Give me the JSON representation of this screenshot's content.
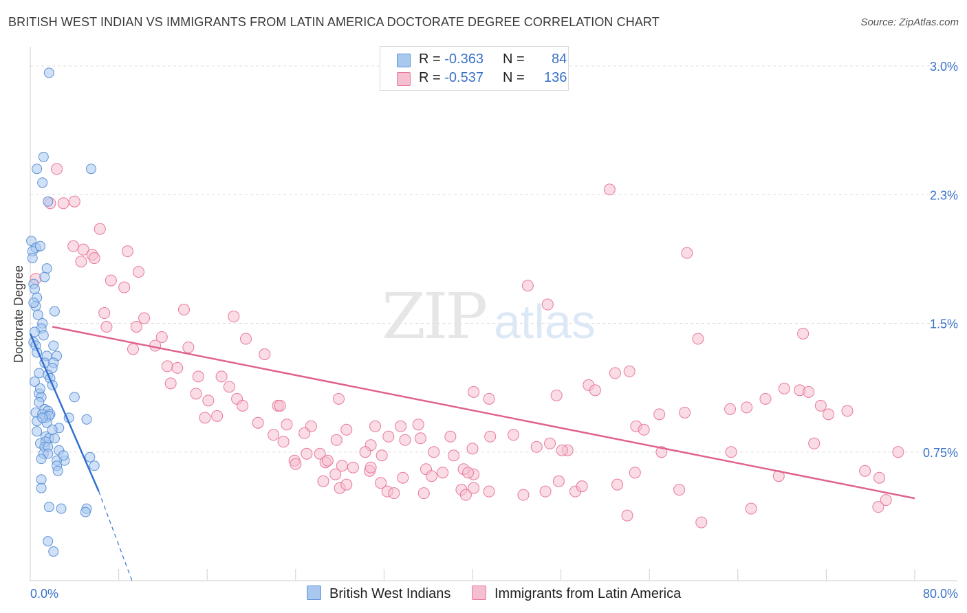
{
  "header": {
    "title": "BRITISH WEST INDIAN VS IMMIGRANTS FROM LATIN AMERICA DOCTORATE DEGREE CORRELATION CHART",
    "source": "Source: ZipAtlas.com"
  },
  "watermark": {
    "zip": "ZIP",
    "atlas": "atlas"
  },
  "legend": {
    "r_label": "R =",
    "n_label": "N =",
    "rows": [
      {
        "r": "-0.363",
        "n": "84"
      },
      {
        "r": "-0.537",
        "n": "136"
      }
    ]
  },
  "colors": {
    "blue_fill": "#a9c8f0",
    "blue_stroke": "#5b92d6",
    "blue_line": "#2f6fd1",
    "pink_fill": "#f6bfd0",
    "pink_stroke": "#e8789c",
    "pink_line": "#e0628e",
    "tick_label": "#3b72c7",
    "grid": "#dcdcdc"
  },
  "chart_data": {
    "type": "scatter",
    "title": "BRITISH WEST INDIAN VS IMMIGRANTS FROM LATIN AMERICA DOCTORATE DEGREE CORRELATION CHART",
    "xlabel": "",
    "ylabel": "Doctorate Degree",
    "xlim": [
      0,
      80
    ],
    "ylim": [
      0,
      3.0
    ],
    "x_tick_labels": [
      "0.0%",
      "80.0%"
    ],
    "y_ticks": [
      0.75,
      1.5,
      2.25,
      3.0
    ],
    "y_tick_labels": [
      "0.75%",
      "1.5%",
      "2.3%",
      "3.0%"
    ],
    "grid": "horizontal dashed",
    "legend_position": "bottom",
    "series": [
      {
        "name": "British West Indians",
        "r": -0.363,
        "n": 84,
        "trend": {
          "x0": 0.0,
          "y0": 1.44,
          "x1": 6.2,
          "y1": 0.52,
          "dashed_to_x": 9.2,
          "dashed_to_y": 0.0
        },
        "points": [
          [
            1.7,
            2.96
          ],
          [
            1.2,
            2.47
          ],
          [
            0.6,
            2.4
          ],
          [
            5.5,
            2.4
          ],
          [
            1.1,
            2.32
          ],
          [
            1.6,
            2.21
          ],
          [
            0.1,
            1.98
          ],
          [
            0.5,
            1.94
          ],
          [
            0.9,
            1.95
          ],
          [
            0.2,
            1.92
          ],
          [
            1.5,
            1.82
          ],
          [
            1.3,
            1.77
          ],
          [
            0.3,
            1.73
          ],
          [
            0.4,
            1.7
          ],
          [
            0.6,
            1.65
          ],
          [
            0.5,
            1.6
          ],
          [
            2.2,
            1.57
          ],
          [
            0.7,
            1.55
          ],
          [
            1.1,
            1.5
          ],
          [
            1.0,
            1.47
          ],
          [
            1.2,
            1.43
          ],
          [
            0.3,
            1.39
          ],
          [
            0.5,
            1.37
          ],
          [
            2.1,
            1.37
          ],
          [
            0.6,
            1.33
          ],
          [
            1.5,
            1.31
          ],
          [
            2.4,
            1.31
          ],
          [
            1.3,
            1.27
          ],
          [
            2.1,
            1.27
          ],
          [
            2.0,
            1.24
          ],
          [
            0.8,
            1.21
          ],
          [
            1.6,
            1.2
          ],
          [
            1.8,
            1.18
          ],
          [
            0.4,
            1.16
          ],
          [
            2.0,
            1.14
          ],
          [
            0.8,
            1.09
          ],
          [
            1.0,
            1.07
          ],
          [
            4.0,
            1.07
          ],
          [
            0.8,
            1.04
          ],
          [
            1.3,
            1.0
          ],
          [
            1.6,
            0.99
          ],
          [
            0.5,
            0.98
          ],
          [
            1.1,
            0.97
          ],
          [
            1.8,
            0.97
          ],
          [
            1.4,
            0.95
          ],
          [
            1.7,
            0.96
          ],
          [
            3.5,
            0.95
          ],
          [
            5.1,
            0.94
          ],
          [
            0.6,
            0.93
          ],
          [
            1.5,
            0.92
          ],
          [
            2.6,
            0.89
          ],
          [
            0.6,
            0.87
          ],
          [
            1.4,
            0.84
          ],
          [
            1.7,
            0.83
          ],
          [
            2.2,
            0.83
          ],
          [
            0.9,
            0.8
          ],
          [
            1.4,
            0.81
          ],
          [
            1.3,
            0.78
          ],
          [
            1.6,
            0.78
          ],
          [
            1.2,
            0.74
          ],
          [
            1.6,
            0.74
          ],
          [
            5.4,
            0.72
          ],
          [
            1.0,
            0.71
          ],
          [
            3.1,
            0.7
          ],
          [
            2.4,
            0.7
          ],
          [
            5.8,
            0.67
          ],
          [
            2.4,
            0.67
          ],
          [
            2.5,
            0.64
          ],
          [
            1.0,
            0.59
          ],
          [
            1.0,
            0.54
          ],
          [
            1.7,
            0.43
          ],
          [
            2.8,
            0.42
          ],
          [
            5.1,
            0.42
          ],
          [
            5.0,
            0.4
          ],
          [
            1.6,
            0.23
          ],
          [
            2.1,
            0.17
          ],
          [
            0.2,
            1.88
          ],
          [
            0.3,
            1.62
          ],
          [
            0.9,
            1.12
          ],
          [
            2.0,
            0.88
          ],
          [
            1.1,
            0.95
          ],
          [
            0.4,
            1.45
          ],
          [
            2.6,
            0.76
          ],
          [
            3.0,
            0.73
          ]
        ]
      },
      {
        "name": "Immigrants from Latin America",
        "r": -0.537,
        "n": 136,
        "trend": {
          "x0": 2.0,
          "y0": 1.48,
          "x1": 80.0,
          "y1": 0.48
        },
        "points": [
          [
            2.4,
            2.4
          ],
          [
            1.8,
            2.2
          ],
          [
            3.0,
            2.2
          ],
          [
            4.0,
            2.21
          ],
          [
            6.3,
            2.05
          ],
          [
            3.9,
            1.95
          ],
          [
            4.8,
            1.93
          ],
          [
            5.6,
            1.9
          ],
          [
            8.8,
            1.92
          ],
          [
            4.6,
            1.86
          ],
          [
            5.8,
            1.88
          ],
          [
            9.8,
            1.8
          ],
          [
            7.3,
            1.75
          ],
          [
            8.5,
            1.71
          ],
          [
            0.5,
            1.76
          ],
          [
            6.7,
            1.56
          ],
          [
            10.3,
            1.53
          ],
          [
            13.9,
            1.58
          ],
          [
            18.4,
            1.54
          ],
          [
            9.6,
            1.48
          ],
          [
            11.9,
            1.42
          ],
          [
            6.9,
            1.48
          ],
          [
            19.5,
            1.41
          ],
          [
            9.3,
            1.35
          ],
          [
            11.3,
            1.37
          ],
          [
            14.3,
            1.36
          ],
          [
            21.2,
            1.32
          ],
          [
            12.4,
            1.25
          ],
          [
            13.3,
            1.24
          ],
          [
            15.2,
            1.19
          ],
          [
            17.3,
            1.19
          ],
          [
            12.7,
            1.15
          ],
          [
            18.0,
            1.13
          ],
          [
            15.0,
            1.09
          ],
          [
            16.1,
            1.05
          ],
          [
            18.7,
            1.06
          ],
          [
            19.2,
            1.02
          ],
          [
            22.4,
            1.02
          ],
          [
            16.9,
            0.96
          ],
          [
            15.8,
            0.95
          ],
          [
            20.6,
            0.92
          ],
          [
            23.2,
            0.91
          ],
          [
            25.4,
            0.9
          ],
          [
            22.0,
            0.85
          ],
          [
            24.8,
            0.86
          ],
          [
            22.9,
            0.81
          ],
          [
            28.6,
            0.88
          ],
          [
            31.2,
            0.9
          ],
          [
            33.5,
            0.9
          ],
          [
            35.1,
            0.91
          ],
          [
            32.4,
            0.84
          ],
          [
            33.9,
            0.82
          ],
          [
            35.3,
            0.83
          ],
          [
            38.0,
            0.84
          ],
          [
            27.7,
            0.82
          ],
          [
            30.8,
            0.79
          ],
          [
            30.3,
            0.75
          ],
          [
            31.8,
            0.73
          ],
          [
            36.5,
            0.75
          ],
          [
            38.3,
            0.73
          ],
          [
            25.0,
            0.74
          ],
          [
            26.2,
            0.74
          ],
          [
            23.9,
            0.7
          ],
          [
            26.7,
            0.69
          ],
          [
            28.2,
            0.67
          ],
          [
            24.0,
            0.68
          ],
          [
            26.9,
            0.7
          ],
          [
            29.2,
            0.66
          ],
          [
            30.7,
            0.64
          ],
          [
            27.6,
            0.62
          ],
          [
            31.7,
            0.57
          ],
          [
            33.7,
            0.6
          ],
          [
            35.8,
            0.65
          ],
          [
            37.3,
            0.63
          ],
          [
            36.3,
            0.61
          ],
          [
            39.2,
            0.65
          ],
          [
            40.1,
            0.62
          ],
          [
            40.0,
            0.77
          ],
          [
            41.6,
            0.84
          ],
          [
            43.7,
            0.85
          ],
          [
            45.8,
            0.78
          ],
          [
            47.0,
            0.8
          ],
          [
            48.6,
            0.76
          ],
          [
            39.6,
            0.63
          ],
          [
            39.0,
            0.53
          ],
          [
            41.5,
            0.52
          ],
          [
            44.6,
            0.5
          ],
          [
            46.6,
            0.52
          ],
          [
            49.3,
            0.52
          ],
          [
            48.1,
            0.76
          ],
          [
            49.9,
            0.55
          ],
          [
            53.1,
            0.56
          ],
          [
            54.7,
            0.63
          ],
          [
            57.1,
            0.75
          ],
          [
            47.8,
            0.58
          ],
          [
            32.3,
            0.52
          ],
          [
            32.9,
            0.51
          ],
          [
            35.6,
            0.51
          ],
          [
            39.4,
            0.5
          ],
          [
            40.1,
            0.54
          ],
          [
            28.0,
            0.54
          ],
          [
            28.6,
            0.56
          ],
          [
            26.5,
            0.58
          ],
          [
            30.8,
            0.66
          ],
          [
            22.6,
            1.02
          ],
          [
            27.9,
            1.06
          ],
          [
            41.5,
            1.06
          ],
          [
            40.1,
            1.1
          ],
          [
            47.6,
            1.08
          ],
          [
            50.5,
            1.14
          ],
          [
            51.1,
            1.11
          ],
          [
            54.8,
            0.9
          ],
          [
            55.5,
            0.88
          ],
          [
            52.9,
            1.21
          ],
          [
            54.2,
            1.22
          ],
          [
            56.9,
            0.97
          ],
          [
            59.2,
            0.98
          ],
          [
            63.3,
            1.0
          ],
          [
            64.8,
            1.01
          ],
          [
            66.5,
            1.06
          ],
          [
            68.2,
            1.12
          ],
          [
            69.6,
            1.11
          ],
          [
            70.4,
            1.1
          ],
          [
            71.5,
            1.02
          ],
          [
            72.2,
            0.97
          ],
          [
            73.9,
            0.99
          ],
          [
            75.5,
            0.64
          ],
          [
            76.8,
            0.6
          ],
          [
            77.4,
            0.47
          ],
          [
            67.7,
            0.61
          ],
          [
            70.9,
            0.8
          ],
          [
            63.4,
            0.75
          ],
          [
            45.0,
            1.72
          ],
          [
            46.8,
            1.61
          ],
          [
            52.4,
            2.28
          ],
          [
            59.4,
            1.91
          ],
          [
            60.4,
            1.41
          ],
          [
            69.9,
            1.44
          ],
          [
            76.7,
            0.43
          ],
          [
            78.5,
            0.75
          ],
          [
            54.0,
            0.38
          ],
          [
            60.7,
            0.34
          ],
          [
            65.2,
            0.42
          ],
          [
            58.7,
            0.53
          ]
        ]
      }
    ]
  }
}
